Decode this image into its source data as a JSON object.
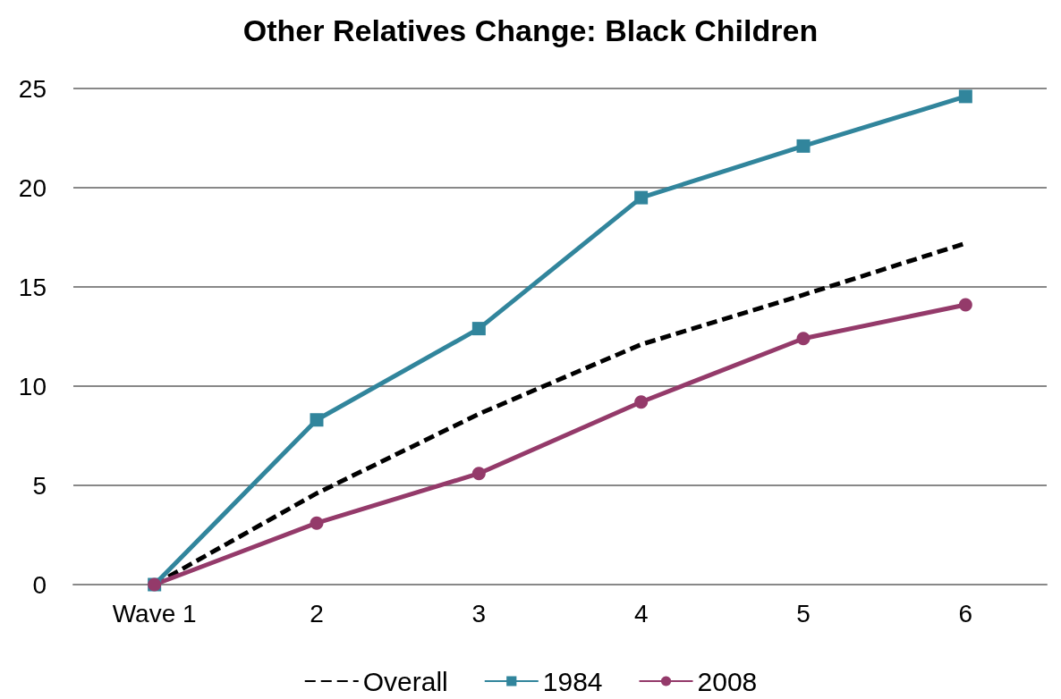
{
  "chart_data": {
    "type": "line",
    "title": "Other Relatives Change: Black Children",
    "categories": [
      "Wave 1",
      "2",
      "3",
      "4",
      "5",
      "6"
    ],
    "series": [
      {
        "name": "Overall",
        "color": "#000000",
        "marker": "none",
        "line_style": "dashed",
        "values": [
          0,
          4.6,
          8.6,
          12.1,
          14.6,
          17.2
        ]
      },
      {
        "name": "1984",
        "color": "#31859c",
        "marker": "square",
        "line_style": "solid",
        "values": [
          0,
          8.3,
          12.9,
          19.5,
          22.1,
          24.6
        ]
      },
      {
        "name": "2008",
        "color": "#943a6a",
        "marker": "circle",
        "line_style": "solid",
        "values": [
          0,
          3.1,
          5.6,
          9.2,
          12.4,
          14.1
        ]
      }
    ],
    "ylim": [
      0,
      25
    ],
    "yticks": [
      0,
      5,
      10,
      15,
      20,
      25
    ],
    "grid": "y",
    "legend": "bottom"
  }
}
